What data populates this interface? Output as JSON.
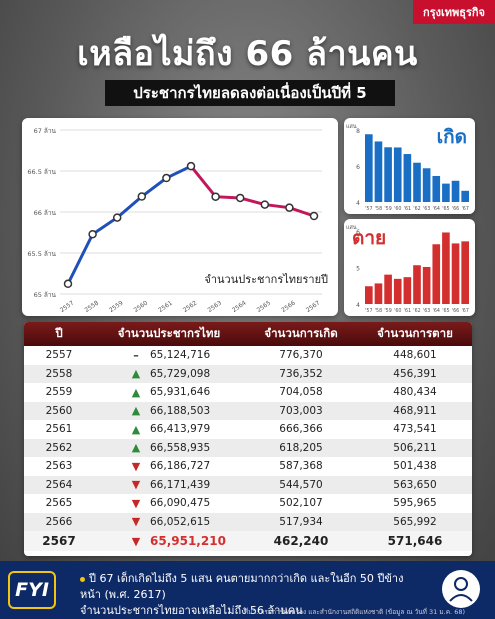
{
  "brand": "กรุงเทพธุรกิจ",
  "title": "เหลือไม่ถึง 66 ล้านคน",
  "subtitle": "ประชากรไทยลดลงต่อเนื่องเป็นปีที่ 5",
  "colors": {
    "accent_red": "#c8102e",
    "birth_blue": "#1a6fc4",
    "death_red": "#d32f2f",
    "line": "#1f4fb8",
    "line_decline": "#c2185b"
  },
  "chart_data": [
    {
      "type": "line",
      "caption": "จำนวนประชากรไทยรายปี",
      "x": [
        "2557",
        "2558",
        "2559",
        "2560",
        "2561",
        "2562",
        "2563",
        "2564",
        "2565",
        "2566",
        "2567"
      ],
      "values": [
        65124716,
        65729098,
        65931646,
        66188503,
        66413979,
        66558935,
        66186727,
        66171439,
        66090475,
        66052615,
        65951210
      ],
      "y_ticks": [
        "65 ล้าน",
        "65.5 ล้าน",
        "66 ล้าน",
        "66.5 ล้าน",
        "67 ล้าน"
      ],
      "ylim": [
        65000000,
        67000000
      ],
      "grid": true
    },
    {
      "type": "bar",
      "title": "เกิด",
      "categories": [
        "'57",
        "'58",
        "'59",
        "'60",
        "'61",
        "'62",
        "'63",
        "'64",
        "'65",
        "'66",
        "'67"
      ],
      "values": [
        776370,
        736352,
        704058,
        703003,
        666366,
        618205,
        587368,
        544570,
        502107,
        517934,
        462240
      ],
      "y_ticks": [
        "4",
        "6",
        "8"
      ],
      "y_unit": "แสน",
      "ylim": [
        400000,
        800000
      ]
    },
    {
      "type": "bar",
      "title": "ตาย",
      "categories": [
        "'57",
        "'58",
        "'59",
        "'60",
        "'61",
        "'62",
        "'63",
        "'64",
        "'65",
        "'66",
        "'67"
      ],
      "values": [
        448601,
        456391,
        480434,
        468911,
        473541,
        506211,
        501438,
        563650,
        595965,
        565992,
        571646
      ],
      "y_ticks": [
        "4",
        "5",
        "6"
      ],
      "y_unit": "แสน",
      "ylim": [
        400000,
        600000
      ]
    }
  ],
  "table": {
    "headers": [
      "ปี",
      "จำนวนประชากรไทย",
      "จำนวนการเกิด",
      "จำนวนการตาย"
    ],
    "rows": [
      {
        "year": "2557",
        "trend": "flat",
        "pop": "65,124,716",
        "birth": "776,370",
        "death": "448,601"
      },
      {
        "year": "2558",
        "trend": "up",
        "pop": "65,729,098",
        "birth": "736,352",
        "death": "456,391"
      },
      {
        "year": "2559",
        "trend": "up",
        "pop": "65,931,646",
        "birth": "704,058",
        "death": "480,434"
      },
      {
        "year": "2560",
        "trend": "up",
        "pop": "66,188,503",
        "birth": "703,003",
        "death": "468,911"
      },
      {
        "year": "2561",
        "trend": "up",
        "pop": "66,413,979",
        "birth": "666,366",
        "death": "473,541"
      },
      {
        "year": "2562",
        "trend": "up",
        "pop": "66,558,935",
        "birth": "618,205",
        "death": "506,211"
      },
      {
        "year": "2563",
        "trend": "down",
        "pop": "66,186,727",
        "birth": "587,368",
        "death": "501,438"
      },
      {
        "year": "2564",
        "trend": "down",
        "pop": "66,171,439",
        "birth": "544,570",
        "death": "563,650"
      },
      {
        "year": "2565",
        "trend": "down",
        "pop": "66,090,475",
        "birth": "502,107",
        "death": "595,965"
      },
      {
        "year": "2566",
        "trend": "down",
        "pop": "66,052,615",
        "birth": "517,934",
        "death": "565,992"
      },
      {
        "year": "2567",
        "trend": "down",
        "pop": "65,951,210",
        "birth": "462,240",
        "death": "571,646"
      }
    ]
  },
  "footer": {
    "badge": "FYI",
    "line1": "ปี 67 เด็กเกิดไม่ถึง 5 แสน คนตายมากกว่าเกิด และในอีก 50 ปีข้างหน้า (พ.ศ. 2617)",
    "line2": "จำนวนประชากรไทยอาจเหลือไม่ถึง 56 ล้านคน",
    "source": "ที่มา: กรมการปกครอง และสำนักงานสถิติแห่งชาติ (ข้อมูล ณ วันที่ 31 ม.ค. 68)"
  }
}
